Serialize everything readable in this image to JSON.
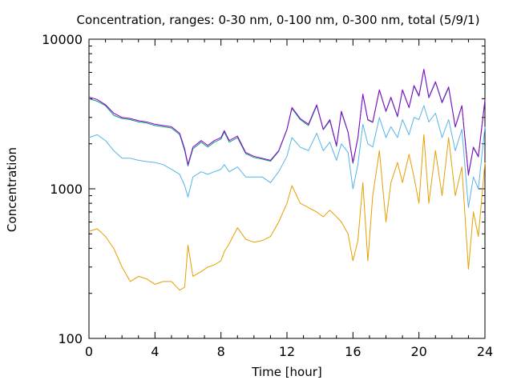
{
  "chart_data": {
    "type": "line",
    "title": "Concentration, ranges: 0-30 nm, 0-100 nm, 0-300 nm, total (5/9/1)",
    "xlabel": "Time [hour]",
    "ylabel": "Concentration",
    "xlim": [
      0,
      24
    ],
    "ylim": [
      100,
      10000
    ],
    "yscale": "log",
    "grid": false,
    "legend": "none",
    "x_ticks": [
      "0",
      "4",
      "8",
      "12",
      "16",
      "20",
      "24"
    ],
    "y_ticks": [
      "100",
      "1000",
      "10000"
    ],
    "x": [
      0,
      0.5,
      1,
      1.5,
      2,
      2.5,
      3,
      3.5,
      4,
      4.5,
      5,
      5.5,
      5.8,
      6,
      6.3,
      6.8,
      7.2,
      7.6,
      8,
      8.2,
      8.5,
      9,
      9.5,
      10,
      10.5,
      11,
      11.5,
      12,
      12.3,
      12.8,
      13.3,
      13.8,
      14.2,
      14.6,
      15,
      15.3,
      15.7,
      16,
      16.3,
      16.6,
      16.9,
      17.2,
      17.6,
      18,
      18.3,
      18.7,
      19,
      19.4,
      19.7,
      20,
      20.3,
      20.6,
      21,
      21.4,
      21.8,
      22.2,
      22.6,
      23,
      23.3,
      23.6,
      24
    ],
    "series": [
      {
        "color": "#9400d3",
        "values": [
          4100,
          3950,
          3650,
          3200,
          3000,
          2950,
          2850,
          2800,
          2700,
          2650,
          2600,
          2350,
          1850,
          1450,
          1900,
          2100,
          1950,
          2100,
          2200,
          2450,
          2100,
          2250,
          1750,
          1650,
          1600,
          1550,
          1800,
          2500,
          3500,
          2950,
          2700,
          3650,
          2500,
          2900,
          1950,
          3300,
          2400,
          1500,
          2200,
          4300,
          2900,
          2800,
          4600,
          3300,
          4100,
          3050,
          4600,
          3500,
          4900,
          4200,
          6300,
          4100,
          5200,
          3800,
          4800,
          2600,
          3600,
          1250,
          1900,
          1650,
          3950
        ]
      },
      {
        "color": "#009e73",
        "values": [
          4000,
          3850,
          3600,
          3100,
          2950,
          2900,
          2800,
          2750,
          2650,
          2600,
          2550,
          2300,
          1800,
          1420,
          1850,
          2050,
          1900,
          2050,
          2150,
          2400,
          2050,
          2200,
          1720,
          1620,
          1580,
          1530,
          1780,
          2480,
          3450,
          2900,
          2650,
          3600,
          2480,
          2850,
          1920,
          3250,
          2380,
          1480,
          2180,
          4250,
          2880,
          2780,
          4550,
          3280,
          4050,
          3020,
          4550,
          3480,
          4850,
          4150,
          6250,
          4050,
          5150,
          3750,
          4750,
          2580,
          3580,
          1230,
          1880,
          1630,
          3900
        ]
      },
      {
        "color": "#56b4e9",
        "values": [
          2200,
          2300,
          2100,
          1800,
          1600,
          1600,
          1550,
          1520,
          1500,
          1450,
          1350,
          1250,
          1050,
          880,
          1200,
          1300,
          1250,
          1300,
          1350,
          1450,
          1300,
          1400,
          1200,
          1200,
          1200,
          1100,
          1300,
          1650,
          2200,
          1900,
          1800,
          2350,
          1800,
          2050,
          1550,
          2000,
          1750,
          1000,
          1450,
          2700,
          2000,
          1900,
          3000,
          2200,
          2600,
          2200,
          2900,
          2300,
          3000,
          2900,
          3600,
          2800,
          3200,
          2200,
          2900,
          1800,
          2500,
          750,
          1200,
          1000,
          2600
        ]
      },
      {
        "color": "#e69f00",
        "values": [
          520,
          540,
          480,
          400,
          300,
          240,
          260,
          250,
          230,
          240,
          240,
          210,
          220,
          420,
          260,
          280,
          300,
          310,
          330,
          380,
          430,
          550,
          460,
          440,
          450,
          480,
          600,
          800,
          1050,
          800,
          750,
          700,
          650,
          720,
          650,
          600,
          500,
          330,
          450,
          1100,
          330,
          900,
          1800,
          600,
          1100,
          1500,
          1100,
          1700,
          1200,
          800,
          2300,
          800,
          1800,
          900,
          2200,
          900,
          1400,
          290,
          700,
          480,
          1500
        ]
      }
    ]
  }
}
